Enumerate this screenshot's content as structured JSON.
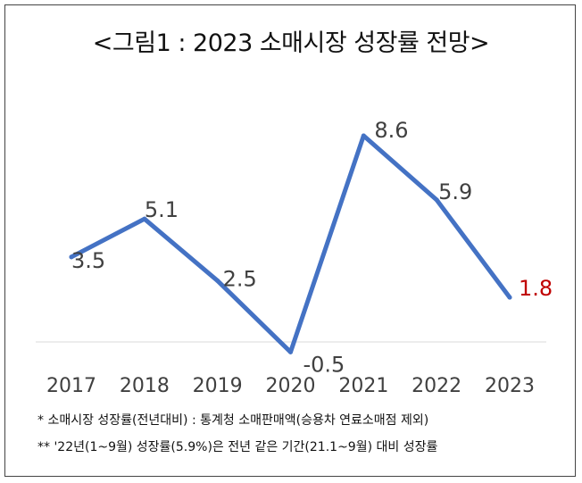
{
  "chart_data": {
    "type": "line",
    "title": "<그림1 : 2023 소매시장 성장률 전망>",
    "categories": [
      "2017",
      "2018",
      "2019",
      "2020",
      "2021",
      "2022",
      "2023"
    ],
    "series": [
      {
        "values": [
          3.5,
          5.1,
          2.5,
          -0.5,
          8.6,
          5.9,
          1.8
        ]
      }
    ],
    "data_labels": [
      "3.5",
      "5.1",
      "2.5",
      "-0.5",
      "8.6",
      "5.9",
      "1.8"
    ],
    "highlight_index": 6,
    "ylim": [
      -0.5,
      9.5
    ],
    "grid": false,
    "line_color": "#4472C4",
    "highlight_label_color": "#C00000",
    "label_color": "#404040"
  },
  "notes": [
    "* 소매시장 성장률(전년대비) : 통계청 소매판매액(승용차 연료소매점 제외)",
    "** '22년(1~9월) 성장률(5.9%)은 전년 같은 기간(21.1~9월) 대비 성장률"
  ]
}
